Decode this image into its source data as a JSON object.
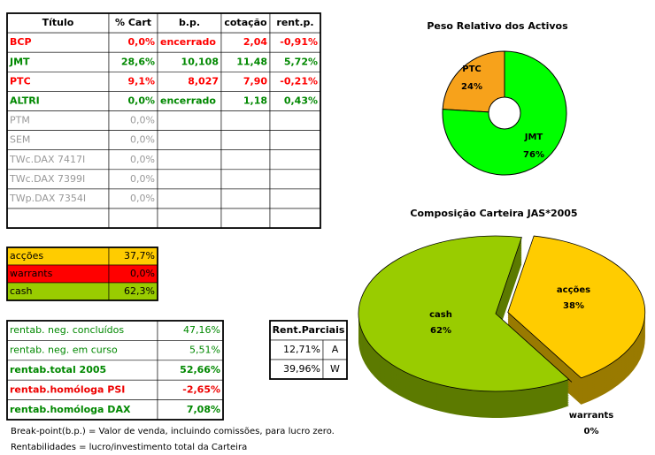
{
  "table": {
    "header": [
      "Título",
      "% Cart",
      "b.p.",
      "cotação",
      "rent.p."
    ],
    "rows": [
      [
        "BCP",
        "0,0%",
        "encerrado",
        "2,04",
        "-0,91%"
      ],
      [
        "JMT",
        "28,6%",
        "10,108",
        "11,48",
        "5,72%"
      ],
      [
        "PTC",
        "9,1%",
        "8,027",
        "7,90",
        "-0,21%"
      ],
      [
        "ALTRI",
        "0,0%",
        "encerrado",
        "1,18",
        "0,43%"
      ],
      [
        "PTM",
        "0,0%"
      ],
      [
        "SEM",
        "0,0%"
      ],
      [
        "TWc.DAX 7417I",
        "0,0%"
      ],
      [
        "TWc.DAX 7399I",
        "0,0%"
      ],
      [
        "TWp.DAX 7354I",
        "0,0%"
      ]
    ]
  },
  "allocation": {
    "rows": [
      [
        "acções",
        "37,7%"
      ],
      [
        "warrants",
        "0,0%"
      ],
      [
        "cash",
        "62,3%"
      ]
    ]
  },
  "returns": {
    "rows": [
      [
        "rentab. neg. concluídos",
        "47,16%"
      ],
      [
        "rentab. neg. em curso",
        "5,51%"
      ],
      [
        "rentab.total 2005",
        "52,66%"
      ],
      [
        "rentab.homóloga PSI",
        "-2,65%"
      ],
      [
        "rentab.homóloga DAX",
        "7,08%"
      ]
    ]
  },
  "partial": {
    "header": "Rent.Parciais",
    "rows": [
      [
        "12,71%",
        "A"
      ],
      [
        "39,96%",
        "W"
      ]
    ]
  },
  "notes": [
    "Break-point(b.p.) = Valor de venda, incluindo comissões, para lucro zero.",
    "Rentabilidades = lucro/investimento total da Carteira"
  ],
  "chart_data": [
    {
      "type": "doughnut",
      "title": "Peso Relativo dos Activos",
      "categories": [
        "PTC",
        "JMT"
      ],
      "values": [
        24,
        76
      ],
      "value_labels": [
        "24%",
        "76%"
      ],
      "colors": [
        "#f7a21b",
        "#00ff00"
      ]
    },
    {
      "type": "pie3d",
      "title": "Composição Carteira JAS*2005",
      "categories": [
        "acções",
        "warrants",
        "cash"
      ],
      "values": [
        38,
        0,
        62
      ],
      "value_labels": [
        "38%",
        "0%",
        "62%"
      ],
      "colors": [
        "#ffcc00",
        "#990000",
        "#99cc00"
      ]
    }
  ]
}
